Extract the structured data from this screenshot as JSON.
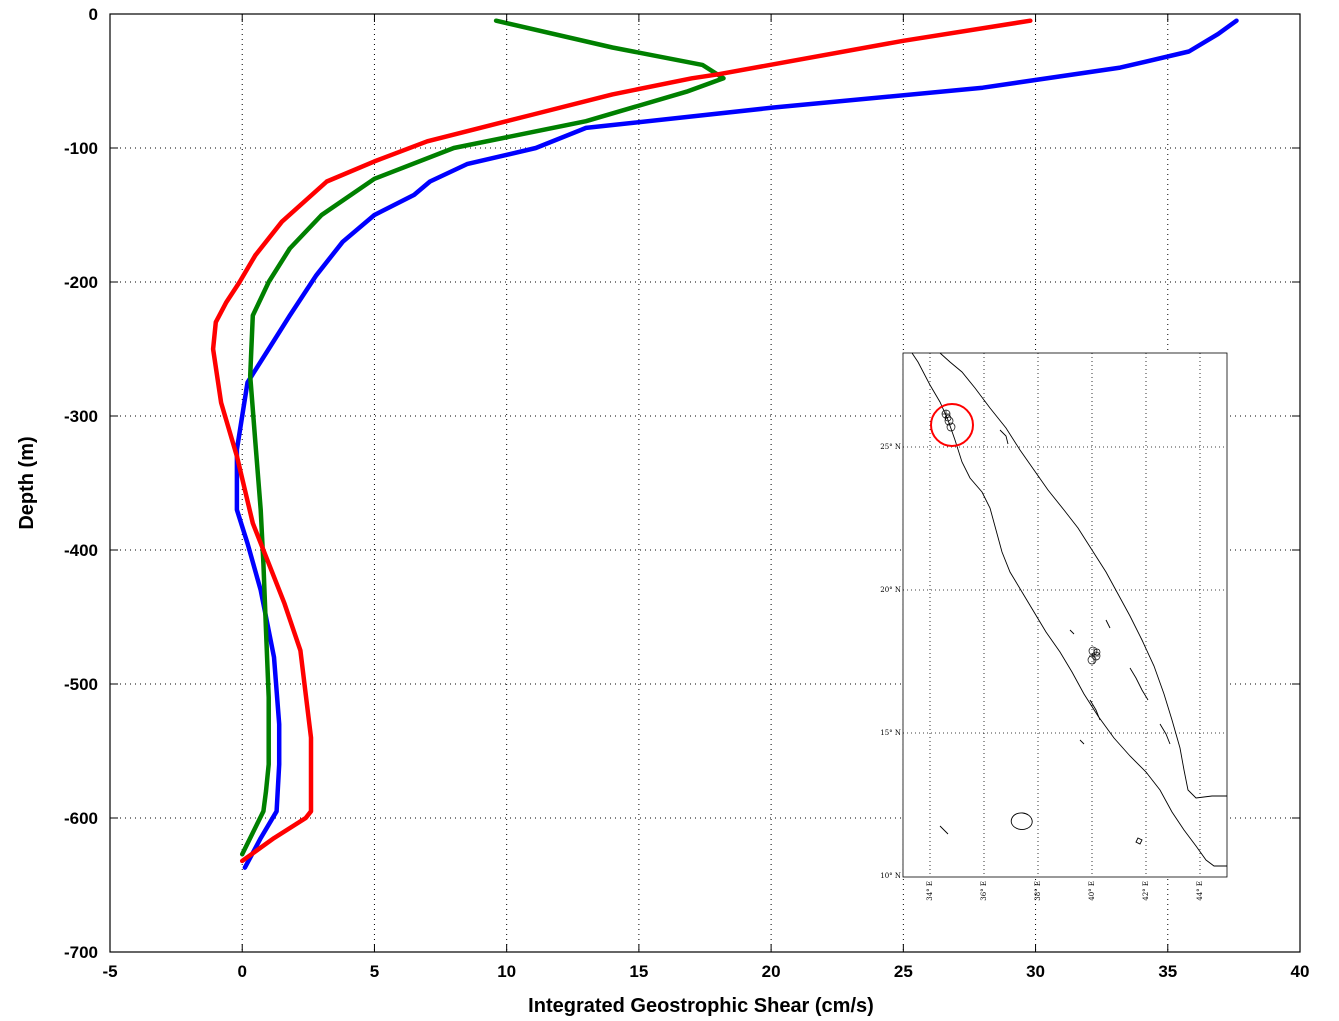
{
  "chart_data": {
    "type": "line",
    "xlabel": "Integrated Geostrophic Shear (cm/s)",
    "ylabel": "Depth (m)",
    "xlim": [
      -5,
      40
    ],
    "ylim": [
      -700,
      0
    ],
    "x_ticks": [
      "-5",
      "0",
      "5",
      "10",
      "15",
      "20",
      "25",
      "30",
      "35",
      "40"
    ],
    "y_ticks": [
      "0",
      "-100",
      "-200",
      "-300",
      "-400",
      "-500",
      "-600",
      "-700"
    ],
    "grid": true,
    "series": [
      {
        "color": "#0000ff",
        "x": [
          37.6,
          36.9,
          35.8,
          33.2,
          28.0,
          20.0,
          13.0,
          11.1,
          8.5,
          7.1,
          6.5,
          5.0,
          3.8,
          2.8,
          1.8,
          1.0,
          0.2,
          0.0,
          -0.2,
          -0.2,
          0.2,
          0.7,
          1.2,
          1.4,
          1.4,
          1.3,
          0.7,
          0.1
        ],
        "y": [
          -5,
          -15,
          -28,
          -40,
          -55,
          -70,
          -85,
          -100,
          -112,
          -125,
          -135,
          -150,
          -170,
          -195,
          -225,
          -250,
          -275,
          -300,
          -325,
          -370,
          -395,
          -430,
          -480,
          -530,
          -560,
          -595,
          -615,
          -637
        ]
      },
      {
        "color": "#008000",
        "x": [
          9.6,
          14.0,
          17.4,
          18.2,
          16.8,
          13.0,
          8.0,
          5.0,
          3.0,
          1.8,
          1.0,
          0.4,
          0.3,
          0.5,
          0.7,
          0.8,
          0.9,
          1.0,
          1.0,
          0.9,
          0.8,
          0.0
        ],
        "y": [
          -5,
          -25,
          -38,
          -48,
          -58,
          -80,
          -100,
          -123,
          -150,
          -175,
          -200,
          -225,
          -270,
          -320,
          -370,
          -410,
          -460,
          -510,
          -560,
          -580,
          -595,
          -627
        ]
      },
      {
        "color": "#ff0000",
        "x": [
          29.8,
          25.0,
          18.0,
          17.0,
          14.0,
          11.0,
          7.0,
          5.0,
          3.2,
          1.5,
          0.5,
          -0.1,
          -0.6,
          -1.0,
          -1.1,
          -0.8,
          -0.2,
          0.4,
          1.0,
          1.6,
          2.2,
          2.6,
          2.6,
          2.4,
          1.2,
          0.0
        ],
        "y": [
          -5,
          -20,
          -45,
          -48,
          -60,
          -75,
          -95,
          -110,
          -125,
          -155,
          -180,
          -200,
          -215,
          -230,
          -250,
          -290,
          -330,
          -380,
          -410,
          -440,
          -475,
          -540,
          -595,
          -600,
          -615,
          -632
        ]
      }
    ]
  },
  "inset_map": {
    "lat_labels": [
      "25° N",
      "20° N",
      "15° N",
      "10° N"
    ],
    "lon_labels": [
      "34° E",
      "36° E",
      "38° E",
      "40° E",
      "42° E",
      "44° E"
    ],
    "highlight_color": "#ff0000"
  }
}
